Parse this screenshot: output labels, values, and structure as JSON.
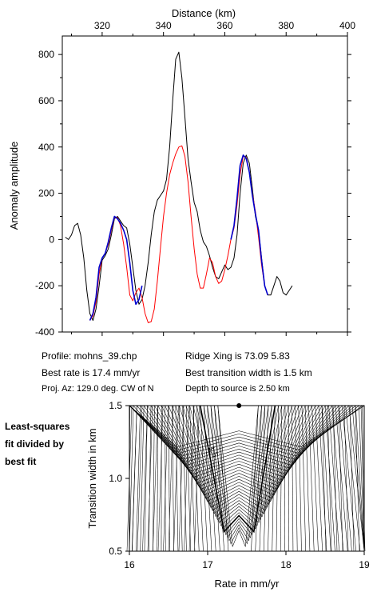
{
  "chart_data": [
    {
      "type": "line",
      "xlabel": "Distance (km)",
      "ylabel": "Anomaly amplitude",
      "xlim": [
        307,
        400
      ],
      "ylim": [
        -400,
        880
      ],
      "x_ticks": [
        320,
        340,
        360,
        380,
        400
      ],
      "y_ticks": [
        -400,
        -200,
        0,
        200,
        400,
        600,
        800
      ],
      "grid": false,
      "series": [
        {
          "color": "#000000",
          "points": [
            [
              308,
              10
            ],
            [
              309,
              0
            ],
            [
              310,
              20
            ],
            [
              311,
              60
            ],
            [
              312,
              70
            ],
            [
              313,
              20
            ],
            [
              314,
              -80
            ],
            [
              315,
              -220
            ],
            [
              316,
              -320
            ],
            [
              317,
              -350
            ],
            [
              318,
              -300
            ],
            [
              319,
              -200
            ],
            [
              320,
              -90
            ],
            [
              321,
              -70
            ],
            [
              322,
              -40
            ],
            [
              323,
              20
            ],
            [
              324,
              90
            ],
            [
              325,
              100
            ],
            [
              326,
              80
            ],
            [
              327,
              60
            ],
            [
              328,
              50
            ],
            [
              329,
              -20
            ],
            [
              330,
              -120
            ],
            [
              331,
              -220
            ],
            [
              332,
              -280
            ],
            [
              333,
              -260
            ],
            [
              334,
              -200
            ],
            [
              335,
              -100
            ],
            [
              336,
              20
            ],
            [
              337,
              120
            ],
            [
              338,
              170
            ],
            [
              339,
              190
            ],
            [
              340,
              210
            ],
            [
              341,
              260
            ],
            [
              342,
              400
            ],
            [
              343,
              600
            ],
            [
              344,
              780
            ],
            [
              345,
              810
            ],
            [
              346,
              700
            ],
            [
              347,
              530
            ],
            [
              348,
              350
            ],
            [
              349,
              250
            ],
            [
              350,
              160
            ],
            [
              351,
              120
            ],
            [
              352,
              40
            ],
            [
              353,
              -10
            ],
            [
              354,
              -30
            ],
            [
              355,
              -70
            ],
            [
              356,
              -120
            ],
            [
              357,
              -160
            ],
            [
              358,
              -170
            ],
            [
              359,
              -140
            ],
            [
              360,
              -110
            ],
            [
              361,
              -130
            ],
            [
              362,
              -120
            ],
            [
              363,
              -80
            ],
            [
              364,
              20
            ],
            [
              365,
              200
            ],
            [
              366,
              330
            ],
            [
              367,
              365
            ],
            [
              368,
              330
            ],
            [
              369,
              220
            ],
            [
              370,
              100
            ],
            [
              371,
              40
            ],
            [
              372,
              -80
            ],
            [
              373,
              -200
            ],
            [
              374,
              -240
            ],
            [
              375,
              -240
            ],
            [
              376,
              -200
            ],
            [
              377,
              -160
            ],
            [
              378,
              -180
            ],
            [
              379,
              -230
            ],
            [
              380,
              -240
            ],
            [
              381,
              -220
            ],
            [
              382,
              -200
            ]
          ]
        },
        {
          "color": "#ff0000",
          "points": [
            [
              316,
              -350
            ],
            [
              317,
              -330
            ],
            [
              318,
              -270
            ],
            [
              319,
              -150
            ],
            [
              320,
              -80
            ],
            [
              321,
              -60
            ],
            [
              322,
              -20
            ],
            [
              323,
              40
            ],
            [
              324,
              95
            ],
            [
              325,
              95
            ],
            [
              326,
              60
            ],
            [
              327,
              -20
            ],
            [
              328,
              -120
            ],
            [
              329,
              -240
            ],
            [
              330,
              -265
            ],
            [
              331,
              -230
            ],
            [
              332,
              -210
            ],
            [
              333,
              -250
            ],
            [
              334,
              -320
            ],
            [
              335,
              -360
            ],
            [
              336,
              -355
            ],
            [
              337,
              -300
            ],
            [
              338,
              -180
            ],
            [
              339,
              -40
            ],
            [
              340,
              100
            ],
            [
              341,
              200
            ],
            [
              342,
              280
            ],
            [
              343,
              330
            ],
            [
              344,
              370
            ],
            [
              345,
              400
            ],
            [
              346,
              405
            ],
            [
              347,
              360
            ],
            [
              348,
              250
            ],
            [
              349,
              100
            ],
            [
              350,
              -40
            ],
            [
              351,
              -150
            ],
            [
              352,
              -210
            ],
            [
              353,
              -210
            ],
            [
              354,
              -150
            ],
            [
              355,
              -80
            ],
            [
              356,
              -100
            ],
            [
              357,
              -160
            ],
            [
              358,
              -190
            ],
            [
              359,
              -180
            ],
            [
              360,
              -130
            ],
            [
              361,
              -70
            ],
            [
              362,
              0
            ],
            [
              363,
              50
            ],
            [
              364,
              150
            ],
            [
              365,
              280
            ],
            [
              366,
              360
            ],
            [
              367,
              355
            ],
            [
              368,
              290
            ],
            [
              369,
              200
            ],
            [
              370,
              120
            ],
            [
              371,
              10
            ],
            [
              372,
              -110
            ],
            [
              373,
              -200
            ],
            [
              374,
              -240
            ]
          ]
        },
        {
          "color": "#0000cc",
          "points": [
            [
              316,
              -350
            ],
            [
              317,
              -320
            ],
            [
              318,
              -250
            ],
            [
              319,
              -120
            ],
            [
              320,
              -80
            ],
            [
              321,
              -60
            ],
            [
              322,
              -10
            ],
            [
              323,
              50
            ],
            [
              324,
              100
            ],
            [
              325,
              90
            ],
            [
              326,
              70
            ],
            [
              327,
              40
            ],
            [
              328,
              0
            ],
            [
              329,
              -100
            ],
            [
              330,
              -220
            ],
            [
              331,
              -280
            ],
            [
              332,
              -260
            ],
            [
              333,
              -200
            ]
          ]
        },
        {
          "color": "#0000cc",
          "points": [
            [
              362,
              0
            ],
            [
              363,
              60
            ],
            [
              364,
              180
            ],
            [
              365,
              320
            ],
            [
              366,
              365
            ],
            [
              367,
              350
            ],
            [
              368,
              290
            ],
            [
              369,
              190
            ],
            [
              370,
              110
            ],
            [
              371,
              40
            ],
            [
              372,
              -90
            ],
            [
              373,
              -200
            ],
            [
              374,
              -240
            ]
          ]
        }
      ]
    },
    {
      "type": "contour",
      "xlabel": "Rate in mm/yr",
      "ylabel": "Transition width in km",
      "xlim": [
        16,
        19
      ],
      "ylim": [
        0.5,
        1.5
      ],
      "x_ticks": [
        16,
        17,
        18,
        19
      ],
      "y_ticks": [
        0.5,
        1.0,
        1.5
      ],
      "contour_label": "1.5",
      "best_fit": {
        "rate": 17.4,
        "width": 1.5
      },
      "grid": false
    }
  ],
  "x_tick_labels": [
    "320",
    "340",
    "360",
    "380",
    "400"
  ],
  "y_tick_labels": [
    "-400",
    "-200",
    "0",
    "200",
    "400",
    "600",
    "800"
  ],
  "rate_tick_labels": [
    "16",
    "17",
    "18",
    "19"
  ],
  "width_tick_labels": [
    "0.5",
    "1.0",
    "1.5"
  ],
  "info": {
    "profile": "Profile: mohns_39.chp",
    "ridge": "Ridge Xing is 73.09 5.83",
    "best_rate": "Best rate is 17.4 mm/yr",
    "best_width": "Best transition width is 1.5 km",
    "proj": "Proj. Az: 129.0 deg. CW of N",
    "depth": "Depth to source is   2.50 km"
  },
  "side_label": [
    "Least-squares",
    "fit divided by",
    "best fit"
  ]
}
